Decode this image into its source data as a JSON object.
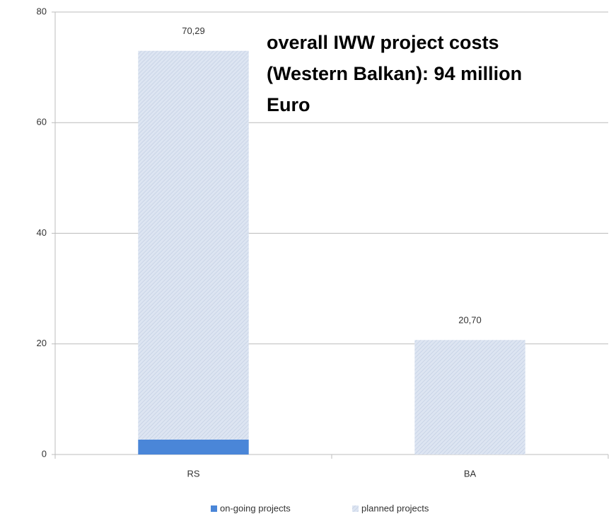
{
  "chart_data": {
    "type": "stacked_bar",
    "categories": [
      "RS",
      "BA"
    ],
    "series": [
      {
        "name": "on-going projects",
        "color": "#4a86d8",
        "values": [
          2.7,
          0
        ]
      },
      {
        "name": "planned projects",
        "color": "#d5dff0",
        "values": [
          70.29,
          20.7
        ],
        "value_labels": [
          "70,29",
          "20,70"
        ]
      }
    ],
    "ylim": [
      0,
      80
    ],
    "yticks": [
      0,
      20,
      40,
      60,
      80
    ],
    "grid": true,
    "legend": "bottom",
    "annotation": {
      "lines": [
        "overall IWW project costs",
        "(Western Balkan): 94 million",
        "Euro"
      ]
    }
  }
}
